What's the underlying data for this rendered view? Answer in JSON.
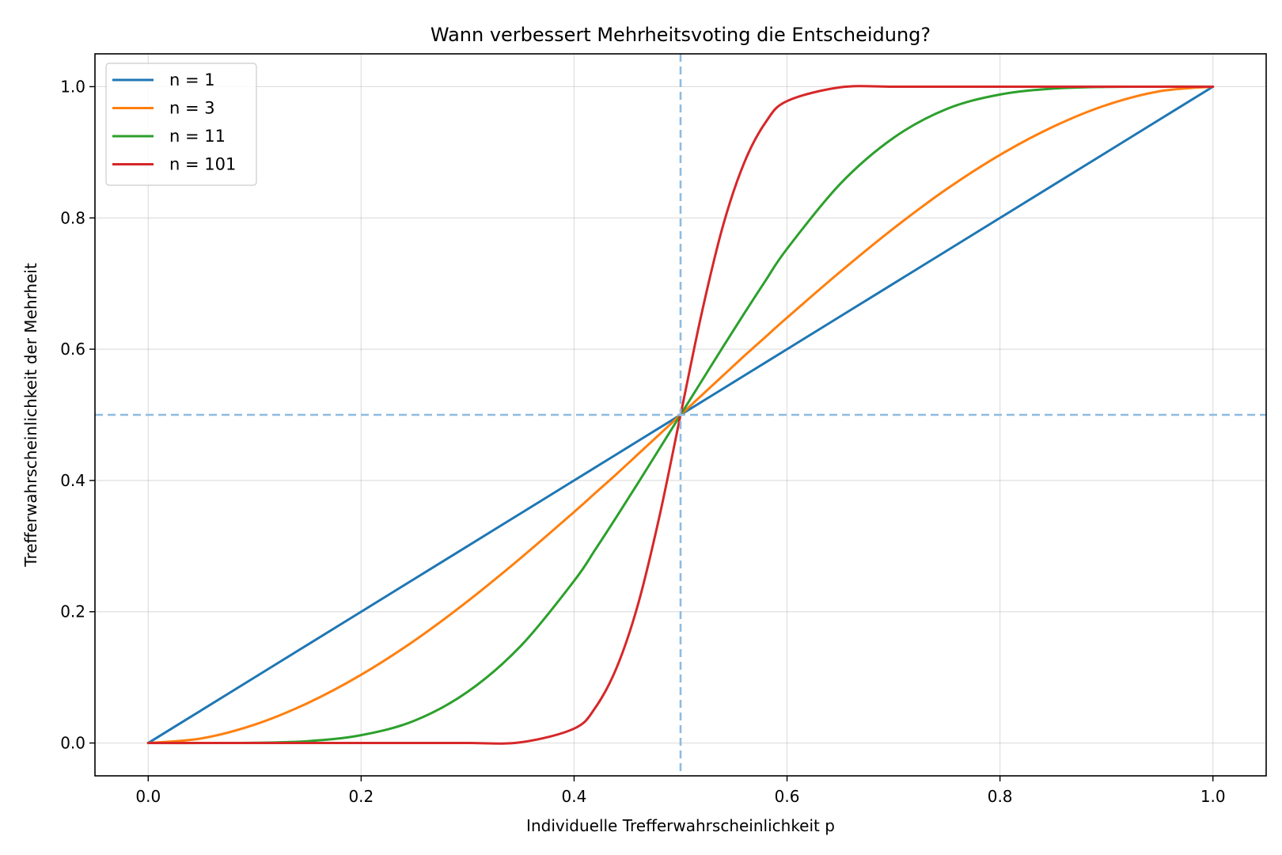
{
  "chart_data": {
    "type": "line",
    "title": "Wann verbessert Mehrheitsvoting die Entscheidung?",
    "xlabel": "Individuelle Trefferwahrscheinlichkeit p",
    "ylabel": "Trefferwahrscheinlichkeit der Mehrheit",
    "xlim": [
      -0.05,
      1.05
    ],
    "ylim": [
      -0.05,
      1.05
    ],
    "xticks": [
      "0.0",
      "0.2",
      "0.4",
      "0.6",
      "0.8",
      "1.0"
    ],
    "yticks": [
      "0.0",
      "0.2",
      "0.4",
      "0.6",
      "0.8",
      "1.0"
    ],
    "grid": true,
    "legend_position": "top-left",
    "reference_lines": {
      "x": 0.5,
      "y": 0.5,
      "style": "dashed",
      "color": "#8fbbe0"
    },
    "x": [
      0.0,
      0.05,
      0.1,
      0.15,
      0.2,
      0.25,
      0.3,
      0.35,
      0.4,
      0.42,
      0.44,
      0.46,
      0.48,
      0.5,
      0.52,
      0.54,
      0.56,
      0.58,
      0.6,
      0.65,
      0.7,
      0.75,
      0.8,
      0.85,
      0.9,
      0.95,
      1.0
    ],
    "series": [
      {
        "name": "n = 1",
        "color": "#1f77b4",
        "values": [
          0.0,
          0.05,
          0.1,
          0.15,
          0.2,
          0.25,
          0.3,
          0.35,
          0.4,
          0.42,
          0.44,
          0.46,
          0.48,
          0.5,
          0.52,
          0.54,
          0.56,
          0.58,
          0.6,
          0.65,
          0.7,
          0.75,
          0.8,
          0.85,
          0.9,
          0.95,
          1.0
        ]
      },
      {
        "name": "n = 3",
        "color": "#ff7f0e",
        "values": [
          0.0,
          0.007,
          0.028,
          0.061,
          0.104,
          0.156,
          0.216,
          0.282,
          0.352,
          0.381,
          0.41,
          0.44,
          0.47,
          0.5,
          0.53,
          0.56,
          0.59,
          0.619,
          0.648,
          0.718,
          0.784,
          0.844,
          0.896,
          0.939,
          0.972,
          0.993,
          1.0
        ]
      },
      {
        "name": "n = 11",
        "color": "#2ca02c",
        "values": [
          0.0,
          0.0,
          0.0003,
          0.0028,
          0.012,
          0.034,
          0.078,
          0.148,
          0.247,
          0.295,
          0.345,
          0.396,
          0.448,
          0.5,
          0.552,
          0.604,
          0.655,
          0.705,
          0.753,
          0.852,
          0.922,
          0.966,
          0.988,
          0.997,
          0.9997,
          1.0,
          1.0
        ]
      },
      {
        "name": "n = 101",
        "color": "#d62728",
        "values": [
          0.0,
          0.0,
          0.0,
          0.0,
          0.0,
          0.0,
          0.0,
          0.0011,
          0.022,
          0.054,
          0.115,
          0.211,
          0.344,
          0.5,
          0.656,
          0.789,
          0.885,
          0.946,
          0.978,
          0.999,
          1.0,
          1.0,
          1.0,
          1.0,
          1.0,
          1.0,
          1.0
        ]
      }
    ]
  }
}
